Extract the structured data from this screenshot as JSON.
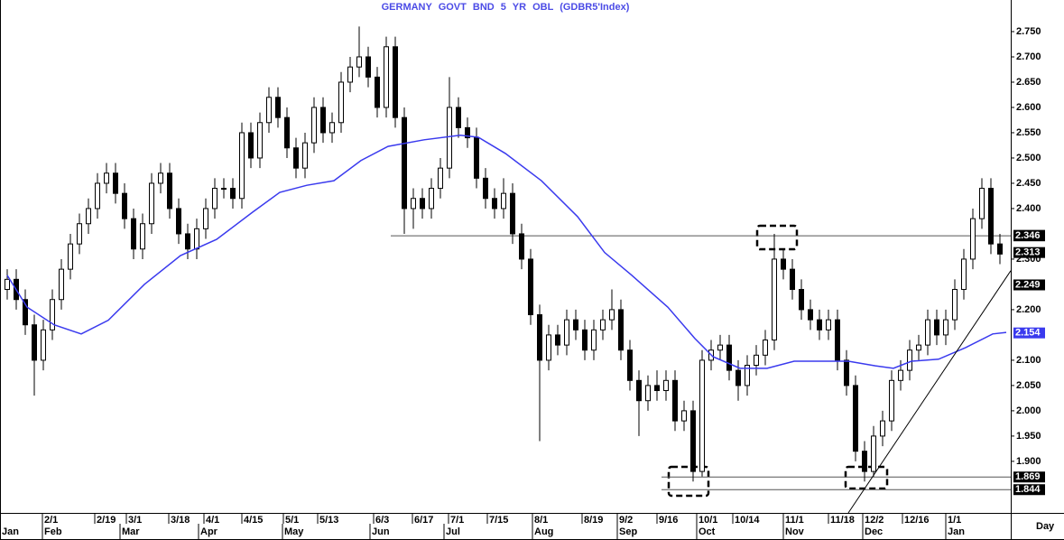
{
  "chart_data": {
    "type": "candlestick",
    "title": "GERMANY GOVT BND 5 YR OBL (GDBR5'Index)",
    "x_axis_label": "Day",
    "up_color": "#ffffff",
    "down_color": "#000000",
    "xlim": [
      -0.8,
      111.2
    ],
    "ylim": [
      1.798,
      2.8125
    ],
    "yticks": [
      {
        "value": 2.75,
        "label": "2.750"
      },
      {
        "value": 2.7,
        "label": "2.700"
      },
      {
        "value": 2.65,
        "label": "2.650"
      },
      {
        "value": 2.6,
        "label": "2.600"
      },
      {
        "value": 2.55,
        "label": "2.550"
      },
      {
        "value": 2.5,
        "label": "2.500"
      },
      {
        "value": 2.45,
        "label": "2.450"
      },
      {
        "value": 2.4,
        "label": "2.400"
      },
      {
        "value": 2.3,
        "label": "2.300"
      },
      {
        "value": 2.2,
        "label": "2.200"
      },
      {
        "value": 2.1,
        "label": "2.100"
      },
      {
        "value": 2.05,
        "label": "2.050"
      },
      {
        "value": 2.0,
        "label": "2.000"
      },
      {
        "value": 1.95,
        "label": "1.950"
      },
      {
        "value": 1.9,
        "label": "1.900"
      }
    ],
    "xticks": [
      {
        "value": 3.9,
        "label": "2/1"
      },
      {
        "value": 9.7,
        "label": "2/19"
      },
      {
        "value": 13.2,
        "label": "3/1"
      },
      {
        "value": 17.9,
        "label": "3/18"
      },
      {
        "value": 21.8,
        "label": "4/1"
      },
      {
        "value": 26.0,
        "label": "4/15"
      },
      {
        "value": 30.6,
        "label": "5/1"
      },
      {
        "value": 34.4,
        "label": "5/13"
      },
      {
        "value": 40.6,
        "label": "6/3"
      },
      {
        "value": 44.9,
        "label": "6/17"
      },
      {
        "value": 48.9,
        "label": "7/1"
      },
      {
        "value": 53.2,
        "label": "7/15"
      },
      {
        "value": 58.2,
        "label": "8/1"
      },
      {
        "value": 63.7,
        "label": "8/19"
      },
      {
        "value": 67.6,
        "label": "9/2"
      },
      {
        "value": 72.0,
        "label": "9/16"
      },
      {
        "value": 76.4,
        "label": "10/1"
      },
      {
        "value": 80.4,
        "label": "10/14"
      },
      {
        "value": 86.0,
        "label": "11/1"
      },
      {
        "value": 91.0,
        "label": "11/18"
      },
      {
        "value": 94.8,
        "label": "12/2"
      },
      {
        "value": 99.2,
        "label": "12/16"
      },
      {
        "value": 104.0,
        "label": "1/1"
      }
    ],
    "month_ticks": [
      {
        "value": -0.8,
        "label": "Jan"
      },
      {
        "value": 3.9,
        "label": "Feb"
      },
      {
        "value": 12.5,
        "label": "Mar"
      },
      {
        "value": 21.2,
        "label": "Apr"
      },
      {
        "value": 30.5,
        "label": "May"
      },
      {
        "value": 40.2,
        "label": "Jun"
      },
      {
        "value": 48.4,
        "label": "Jul"
      },
      {
        "value": 58.2,
        "label": "Aug"
      },
      {
        "value": 67.6,
        "label": "Sep"
      },
      {
        "value": 76.4,
        "label": "Oct"
      },
      {
        "value": 86.0,
        "label": "Nov"
      },
      {
        "value": 94.8,
        "label": "Dec"
      },
      {
        "value": 104.0,
        "label": "Jan"
      }
    ],
    "candles": {
      "open": [
        2.24,
        2.26,
        2.22,
        2.17,
        2.1,
        2.16,
        2.22,
        2.28,
        2.33,
        2.37,
        2.4,
        2.45,
        2.47,
        2.43,
        2.38,
        2.32,
        2.37,
        2.45,
        2.47,
        2.4,
        2.35,
        2.32,
        2.36,
        2.4,
        2.44,
        2.44,
        2.42,
        2.55,
        2.5,
        2.57,
        2.62,
        2.58,
        2.52,
        2.48,
        2.53,
        2.6,
        2.55,
        2.57,
        2.65,
        2.68,
        2.7,
        2.66,
        2.6,
        2.72,
        2.58,
        2.4,
        2.42,
        2.4,
        2.44,
        2.48,
        2.6,
        2.56,
        2.54,
        2.46,
        2.42,
        2.4,
        2.43,
        2.35,
        2.3,
        2.19,
        2.1,
        2.15,
        2.13,
        2.18,
        2.16,
        2.12,
        2.16,
        2.18,
        2.2,
        2.12,
        2.06,
        2.02,
        2.05,
        2.04,
        2.06,
        1.98,
        2.0,
        1.88,
        2.1,
        2.12,
        2.13,
        2.08,
        2.05,
        2.09,
        2.11,
        2.14,
        2.3,
        2.28,
        2.24,
        2.2,
        2.18,
        2.16,
        2.18,
        2.1,
        2.05,
        1.92,
        1.88,
        1.95,
        1.98,
        2.06,
        2.08,
        2.12,
        2.13,
        2.18,
        2.15,
        2.18,
        2.24,
        2.3,
        2.38,
        2.44,
        2.33
      ],
      "high": [
        2.28,
        2.28,
        2.24,
        2.19,
        2.18,
        2.24,
        2.3,
        2.35,
        2.39,
        2.42,
        2.47,
        2.49,
        2.49,
        2.45,
        2.4,
        2.39,
        2.47,
        2.49,
        2.49,
        2.42,
        2.37,
        2.38,
        2.42,
        2.46,
        2.46,
        2.46,
        2.57,
        2.57,
        2.59,
        2.64,
        2.64,
        2.6,
        2.54,
        2.55,
        2.62,
        2.62,
        2.59,
        2.67,
        2.7,
        2.76,
        2.72,
        2.68,
        2.74,
        2.74,
        2.6,
        2.44,
        2.44,
        2.46,
        2.5,
        2.66,
        2.62,
        2.58,
        2.56,
        2.48,
        2.44,
        2.46,
        2.45,
        2.37,
        2.32,
        2.21,
        2.17,
        2.17,
        2.2,
        2.2,
        2.18,
        2.18,
        2.2,
        2.24,
        2.22,
        2.14,
        2.08,
        2.07,
        2.08,
        2.08,
        2.08,
        2.02,
        2.02,
        2.12,
        2.14,
        2.15,
        2.15,
        2.1,
        2.11,
        2.13,
        2.16,
        2.35,
        2.32,
        2.3,
        2.26,
        2.22,
        2.2,
        2.2,
        2.2,
        2.12,
        2.07,
        1.94,
        1.97,
        2.0,
        2.08,
        2.1,
        2.14,
        2.15,
        2.2,
        2.2,
        2.2,
        2.26,
        2.32,
        2.4,
        2.46,
        2.46,
        2.35
      ],
      "low": [
        2.22,
        2.2,
        2.15,
        2.03,
        2.08,
        2.14,
        2.2,
        2.26,
        2.31,
        2.35,
        2.38,
        2.43,
        2.41,
        2.36,
        2.3,
        2.3,
        2.35,
        2.43,
        2.38,
        2.33,
        2.3,
        2.3,
        2.34,
        2.38,
        2.42,
        2.4,
        2.4,
        2.48,
        2.48,
        2.55,
        2.56,
        2.5,
        2.46,
        2.46,
        2.51,
        2.53,
        2.53,
        2.55,
        2.63,
        2.66,
        2.64,
        2.58,
        2.58,
        2.56,
        2.35,
        2.36,
        2.38,
        2.38,
        2.42,
        2.46,
        2.54,
        2.52,
        2.44,
        2.4,
        2.38,
        2.38,
        2.33,
        2.28,
        2.17,
        1.94,
        2.08,
        2.11,
        2.11,
        2.14,
        2.1,
        2.1,
        2.14,
        2.16,
        2.1,
        2.04,
        1.95,
        2.0,
        2.02,
        2.02,
        1.96,
        1.96,
        1.86,
        1.87,
        2.08,
        2.1,
        2.06,
        2.02,
        2.03,
        2.07,
        2.09,
        2.12,
        2.26,
        2.22,
        2.18,
        2.16,
        2.14,
        2.14,
        2.08,
        2.03,
        1.9,
        1.86,
        1.87,
        1.93,
        1.96,
        2.04,
        2.06,
        2.1,
        2.11,
        2.13,
        2.13,
        2.16,
        2.22,
        2.28,
        2.36,
        2.31,
        2.29
      ],
      "close": [
        2.26,
        2.22,
        2.17,
        2.1,
        2.16,
        2.22,
        2.28,
        2.33,
        2.37,
        2.4,
        2.45,
        2.47,
        2.43,
        2.38,
        2.32,
        2.37,
        2.45,
        2.47,
        2.4,
        2.35,
        2.32,
        2.36,
        2.4,
        2.44,
        2.44,
        2.42,
        2.55,
        2.5,
        2.57,
        2.62,
        2.58,
        2.52,
        2.48,
        2.53,
        2.6,
        2.55,
        2.57,
        2.65,
        2.68,
        2.7,
        2.66,
        2.6,
        2.72,
        2.58,
        2.4,
        2.42,
        2.4,
        2.44,
        2.48,
        2.6,
        2.56,
        2.54,
        2.46,
        2.42,
        2.4,
        2.43,
        2.35,
        2.3,
        2.19,
        2.1,
        2.15,
        2.13,
        2.18,
        2.16,
        2.12,
        2.16,
        2.18,
        2.2,
        2.12,
        2.06,
        2.02,
        2.05,
        2.04,
        2.06,
        1.98,
        2.0,
        1.88,
        2.1,
        2.12,
        2.13,
        2.08,
        2.05,
        2.09,
        2.11,
        2.14,
        2.3,
        2.28,
        2.24,
        2.2,
        2.18,
        2.16,
        2.18,
        2.1,
        2.05,
        1.92,
        1.88,
        1.95,
        1.98,
        2.06,
        2.08,
        2.12,
        2.13,
        2.18,
        2.15,
        2.18,
        2.24,
        2.3,
        2.38,
        2.44,
        2.33,
        2.31
      ]
    },
    "moving_average": {
      "color": "#3a3aee",
      "x": [
        0.0,
        2.2,
        5.2,
        8.2,
        11.2,
        15.2,
        19.2,
        23.2,
        27.2,
        30.2,
        33.2,
        36.2,
        39.2,
        42.2,
        46.2,
        50.2,
        52.2,
        55.2,
        59.2,
        63.2,
        66.2,
        69.2,
        73.2,
        76.2,
        78.2,
        81.2,
        84.2,
        87.2,
        90.2,
        93.2,
        96.2,
        98.2,
        100.2,
        103.2,
        106.2,
        109.2,
        110.7
      ],
      "values": [
        2.268,
        2.205,
        2.17,
        2.152,
        2.179,
        2.25,
        2.307,
        2.339,
        2.393,
        2.432,
        2.446,
        2.455,
        2.495,
        2.523,
        2.536,
        2.545,
        2.541,
        2.509,
        2.455,
        2.384,
        2.313,
        2.268,
        2.205,
        2.143,
        2.107,
        2.084,
        2.084,
        2.098,
        2.098,
        2.098,
        2.089,
        2.084,
        2.098,
        2.102,
        2.125,
        2.152,
        2.155
      ]
    },
    "horizontal_lines": [
      {
        "value": 2.346,
        "from_x": 42.5
      },
      {
        "value": 1.869,
        "from_x": 72.5
      },
      {
        "value": 1.844,
        "from_x": 72.5
      }
    ],
    "trendline": {
      "x": [
        93.2,
        111.2
      ],
      "y": [
        1.798,
        2.277
      ]
    },
    "price_tags": [
      {
        "value": 2.347,
        "color": "#000000"
      },
      {
        "value": 2.346,
        "color": "#000000"
      },
      {
        "value": 2.313,
        "color": "#000000"
      },
      {
        "value": 2.249,
        "color": "#000000"
      },
      {
        "value": 2.154,
        "color": "#3a3aee"
      },
      {
        "value": 1.869,
        "color": "#000000"
      },
      {
        "value": 1.844,
        "color": "#000000"
      }
    ]
  }
}
